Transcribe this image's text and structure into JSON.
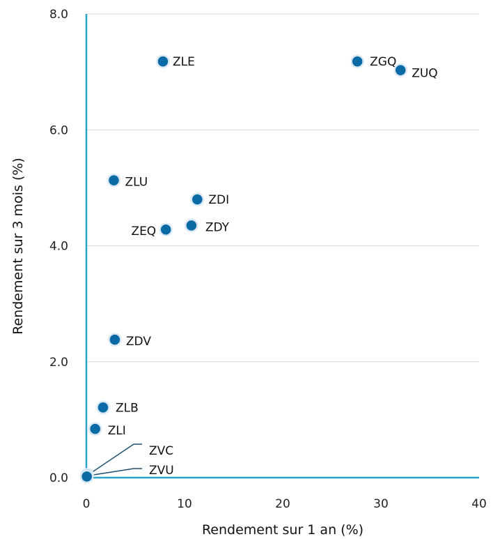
{
  "chart_data": {
    "type": "scatter",
    "title": "",
    "xlabel": "Rendement sur 1 an (%)",
    "ylabel": "Rendement sur 3 mois (%)",
    "xlim": [
      0,
      40
    ],
    "ylim": [
      0,
      8
    ],
    "x_ticks": [
      0,
      10,
      20,
      30,
      40
    ],
    "x_tick_labels": [
      "0",
      "10",
      "20",
      "30",
      "40"
    ],
    "y_ticks": [
      0,
      2,
      4,
      6,
      8
    ],
    "y_tick_labels": [
      "0.0",
      "2.0",
      "4.0",
      "6.0",
      "8.0"
    ],
    "grid": "horizontal",
    "legend": "none",
    "colors": {
      "point": "#0a6aa6",
      "point_outline": "#d8e8f4",
      "axis": "#2aa3c7",
      "grid": "#d9d9d9",
      "leader": "#1c4f70"
    },
    "series": [
      {
        "points": [
          {
            "label": "ZLE",
            "x": 7.8,
            "y": 7.18
          },
          {
            "label": "ZGQ",
            "x": 27.6,
            "y": 7.18
          },
          {
            "label": "ZUQ",
            "x": 32.0,
            "y": 7.03
          },
          {
            "label": "ZLU",
            "x": 2.8,
            "y": 5.13
          },
          {
            "label": "ZDI",
            "x": 11.3,
            "y": 4.8
          },
          {
            "label": "ZDY",
            "x": 10.7,
            "y": 4.35
          },
          {
            "label": "ZEQ",
            "x": 8.1,
            "y": 4.28
          },
          {
            "label": "ZDV",
            "x": 2.9,
            "y": 2.38
          },
          {
            "label": "ZLB",
            "x": 1.7,
            "y": 1.21
          },
          {
            "label": "ZLI",
            "x": 0.9,
            "y": 0.84
          },
          {
            "label": "ZVC",
            "x": 0.1,
            "y": 0.05
          },
          {
            "label": "ZVU",
            "x": 0.05,
            "y": 0.02
          }
        ]
      }
    ]
  }
}
